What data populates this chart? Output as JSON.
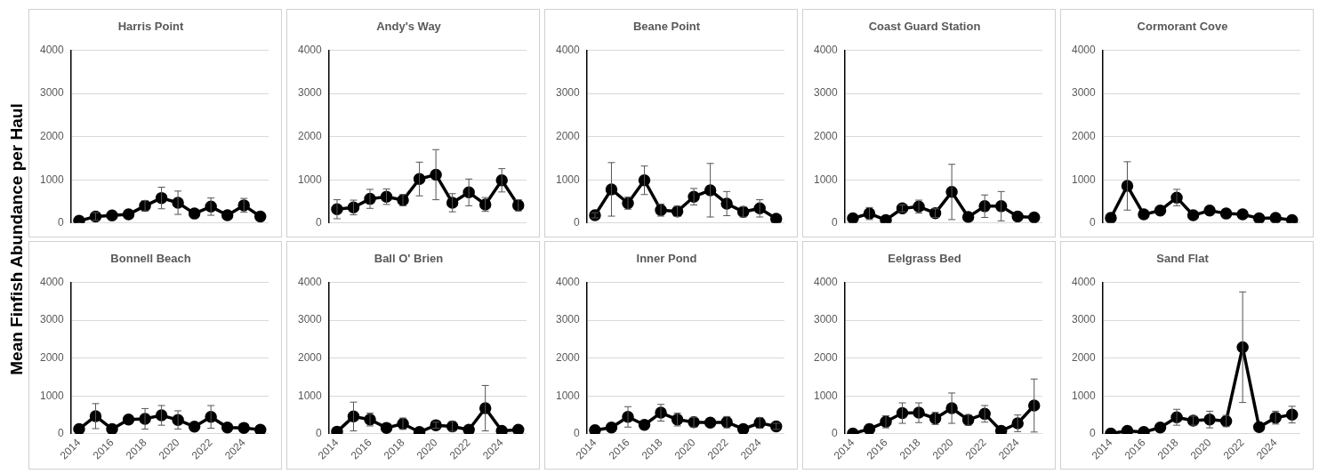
{
  "chart_data": [
    {
      "type": "line",
      "title": "Harris Point",
      "ylabel": "Mean Finfish Abundance per Haul",
      "categories": [
        "2014",
        null,
        "2016",
        null,
        "2018",
        null,
        "2020",
        null,
        "2022",
        null,
        "2024",
        null
      ],
      "values": [
        50,
        150,
        175,
        200,
        400,
        580,
        470,
        220,
        380,
        180,
        410,
        150
      ],
      "errors": [
        null,
        90,
        null,
        null,
        120,
        250,
        270,
        null,
        200,
        null,
        160,
        null
      ],
      "color": "#000000",
      "ylim": [
        0,
        4000
      ],
      "yticks": [
        0,
        1000,
        2000,
        3000,
        4000
      ],
      "grid": "y",
      "marker": "circle",
      "line_style": "solid",
      "tick_labels": "y"
    },
    {
      "type": "line",
      "title": "Andy's Way",
      "categories": [
        "2014",
        null,
        "2016",
        null,
        "2018",
        null,
        "2020",
        null,
        "2022",
        null,
        "2024",
        null
      ],
      "values": [
        320,
        360,
        560,
        610,
        530,
        1020,
        1120,
        470,
        710,
        430,
        990,
        410
      ],
      "errors": [
        220,
        170,
        220,
        180,
        130,
        390,
        580,
        210,
        310,
        160,
        270,
        130
      ],
      "color": "#000000",
      "ylim": [
        0,
        4000
      ],
      "yticks": [
        0,
        1000,
        2000,
        3000,
        4000
      ],
      "grid": "y",
      "marker": "circle",
      "line_style": "solid",
      "tick_labels": "y"
    },
    {
      "type": "line",
      "title": "Beane Point",
      "categories": [
        "2014",
        null,
        "2016",
        null,
        "2018",
        null,
        "2020",
        null,
        "2022",
        null,
        "2024",
        null
      ],
      "values": [
        180,
        780,
        460,
        990,
        300,
        270,
        610,
        760,
        450,
        260,
        340,
        100
      ],
      "errors": [
        60,
        620,
        140,
        330,
        140,
        120,
        190,
        620,
        280,
        120,
        200,
        null
      ],
      "color": "#000000",
      "ylim": [
        0,
        4000
      ],
      "yticks": [
        0,
        1000,
        2000,
        3000,
        4000
      ],
      "grid": "y",
      "marker": "circle",
      "line_style": "solid",
      "tick_labels": "y"
    },
    {
      "type": "line",
      "title": "Coast Guard Station",
      "categories": [
        "2014",
        null,
        "2016",
        null,
        "2018",
        null,
        "2020",
        null,
        "2022",
        null,
        "2024",
        null
      ],
      "values": [
        110,
        220,
        70,
        340,
        380,
        230,
        720,
        140,
        390,
        390,
        150,
        130
      ],
      "errors": [
        null,
        140,
        null,
        80,
        150,
        100,
        640,
        null,
        260,
        340,
        null,
        null
      ],
      "color": "#000000",
      "ylim": [
        0,
        4000
      ],
      "yticks": [
        0,
        1000,
        2000,
        3000,
        4000
      ],
      "grid": "y",
      "marker": "circle",
      "line_style": "solid",
      "tick_labels": "y"
    },
    {
      "type": "line",
      "title": "Cormorant Cove",
      "categories": [
        "2014",
        null,
        "2016",
        null,
        "2018",
        null,
        "2020",
        null,
        "2022",
        null,
        "2024",
        null
      ],
      "values": [
        120,
        860,
        200,
        290,
        590,
        180,
        290,
        220,
        200,
        110,
        120,
        70
      ],
      "errors": [
        null,
        560,
        null,
        null,
        190,
        null,
        null,
        null,
        null,
        null,
        null,
        null
      ],
      "color": "#000000",
      "ylim": [
        0,
        4000
      ],
      "yticks": [
        0,
        1000,
        2000,
        3000,
        4000
      ],
      "grid": "y",
      "marker": "circle",
      "line_style": "solid",
      "tick_labels": "y"
    },
    {
      "type": "line",
      "title": "Bonnell Beach",
      "categories": [
        "2014",
        null,
        "2016",
        null,
        "2018",
        null,
        "2020",
        null,
        "2022",
        null,
        "2024",
        null
      ],
      "values": [
        130,
        470,
        130,
        380,
        400,
        490,
        370,
        190,
        450,
        170,
        160,
        110
      ],
      "errors": [
        null,
        330,
        null,
        null,
        270,
        260,
        240,
        null,
        300,
        null,
        null,
        null
      ],
      "color": "#000000",
      "ylim": [
        0,
        4000
      ],
      "yticks": [
        0,
        1000,
        2000,
        3000,
        4000
      ],
      "grid": "y",
      "marker": "circle",
      "line_style": "solid"
    },
    {
      "type": "line",
      "title": "Ball O' Brien",
      "categories": [
        "2014",
        null,
        "2016",
        null,
        "2018",
        null,
        "2020",
        null,
        "2022",
        null,
        "2024",
        null
      ],
      "values": [
        60,
        460,
        380,
        160,
        270,
        50,
        230,
        200,
        110,
        680,
        80,
        110
      ],
      "errors": [
        null,
        380,
        170,
        null,
        150,
        null,
        80,
        130,
        null,
        600,
        null,
        null
      ],
      "color": "#000000",
      "ylim": [
        0,
        4000
      ],
      "yticks": [
        0,
        1000,
        2000,
        3000,
        4000
      ],
      "grid": "y",
      "marker": "circle",
      "line_style": "solid"
    },
    {
      "type": "line",
      "title": "Inner Pond",
      "categories": [
        "2014",
        null,
        "2016",
        null,
        "2018",
        null,
        "2020",
        null,
        "2022",
        null,
        "2024",
        null
      ],
      "values": [
        100,
        170,
        450,
        240,
        560,
        380,
        310,
        300,
        310,
        130,
        290,
        200
      ],
      "errors": [
        null,
        null,
        270,
        null,
        220,
        170,
        130,
        null,
        150,
        null,
        140,
        80
      ],
      "color": "#000000",
      "ylim": [
        0,
        4000
      ],
      "yticks": [
        0,
        1000,
        2000,
        3000,
        4000
      ],
      "grid": "y",
      "marker": "circle",
      "line_style": "solid"
    },
    {
      "type": "line",
      "title": "Eelgrass Bed",
      "categories": [
        "2014",
        null,
        "2016",
        null,
        "2018",
        null,
        "2020",
        null,
        "2022",
        null,
        "2024",
        null
      ],
      "values": [
        10,
        130,
        320,
        550,
        560,
        410,
        680,
        370,
        530,
        80,
        280,
        750
      ],
      "errors": [
        null,
        null,
        160,
        270,
        260,
        160,
        400,
        140,
        220,
        null,
        220,
        700
      ],
      "color": "#000000",
      "ylim": [
        0,
        4000
      ],
      "yticks": [
        0,
        1000,
        2000,
        3000,
        4000
      ],
      "grid": "y",
      "marker": "circle",
      "line_style": "solid"
    },
    {
      "type": "line",
      "title": "Sand Flat",
      "categories": [
        "2014",
        null,
        "2016",
        null,
        "2018",
        null,
        "2020",
        null,
        "2022",
        null,
        "2024",
        null
      ],
      "values": [
        10,
        80,
        50,
        170,
        440,
        350,
        380,
        340,
        2290,
        180,
        430,
        510
      ],
      "errors": [
        null,
        null,
        null,
        null,
        210,
        120,
        220,
        150,
        1460,
        null,
        170,
        220
      ],
      "color": "#000000",
      "ylim": [
        0,
        4000
      ],
      "yticks": [
        0,
        1000,
        2000,
        3000,
        4000
      ],
      "grid": "y",
      "marker": "circle",
      "line_style": "solid"
    }
  ]
}
